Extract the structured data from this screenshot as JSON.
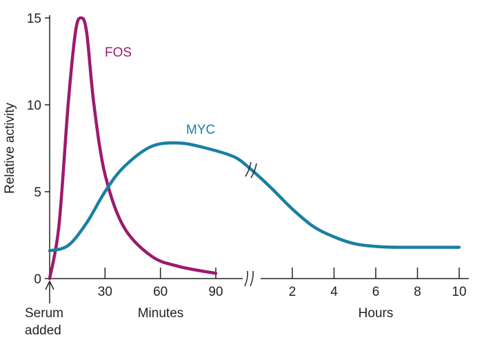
{
  "chart_data": {
    "type": "line",
    "title": "",
    "ylabel": "Relative activity",
    "ylim": [
      0,
      15
    ],
    "yticks": [
      0,
      5,
      10,
      15
    ],
    "x_segments": [
      {
        "label": "Minutes",
        "unit": "minutes",
        "range": [
          0,
          90
        ],
        "ticks": [
          30,
          60,
          90
        ]
      },
      {
        "label": "Hours",
        "unit": "hours",
        "range": [
          0,
          10
        ],
        "ticks": [
          2,
          4,
          6,
          8,
          10
        ]
      }
    ],
    "annotation": {
      "text_line1": "Serum",
      "text_line2": "added",
      "x_minutes": 0
    },
    "series": [
      {
        "name": "FOS",
        "color": "#9c1a6e",
        "points": [
          {
            "segment": 0,
            "x": 0,
            "y": 0
          },
          {
            "segment": 0,
            "x": 5,
            "y": 3
          },
          {
            "segment": 0,
            "x": 10,
            "y": 10
          },
          {
            "segment": 0,
            "x": 14,
            "y": 14.2
          },
          {
            "segment": 0,
            "x": 17,
            "y": 15
          },
          {
            "segment": 0,
            "x": 20,
            "y": 14.2
          },
          {
            "segment": 0,
            "x": 24,
            "y": 10
          },
          {
            "segment": 0,
            "x": 30,
            "y": 6
          },
          {
            "segment": 0,
            "x": 40,
            "y": 3
          },
          {
            "segment": 0,
            "x": 55,
            "y": 1.3
          },
          {
            "segment": 0,
            "x": 70,
            "y": 0.7
          },
          {
            "segment": 0,
            "x": 90,
            "y": 0.3
          }
        ]
      },
      {
        "name": "MYC",
        "color": "#1a7fa3",
        "points": [
          {
            "segment": 0,
            "x": 0,
            "y": 1.6
          },
          {
            "segment": 0,
            "x": 10,
            "y": 1.9
          },
          {
            "segment": 0,
            "x": 20,
            "y": 3.2
          },
          {
            "segment": 0,
            "x": 30,
            "y": 5
          },
          {
            "segment": 0,
            "x": 40,
            "y": 6.4
          },
          {
            "segment": 0,
            "x": 55,
            "y": 7.6
          },
          {
            "segment": 0,
            "x": 70,
            "y": 7.8
          },
          {
            "segment": 0,
            "x": 85,
            "y": 7.5
          },
          {
            "segment": 0,
            "x": 100,
            "y": 7
          },
          {
            "segment": 1,
            "x": 0,
            "y": 6.3
          },
          {
            "segment": 1,
            "x": 1,
            "y": 5.2
          },
          {
            "segment": 1,
            "x": 2,
            "y": 4
          },
          {
            "segment": 1,
            "x": 3,
            "y": 3
          },
          {
            "segment": 1,
            "x": 4,
            "y": 2.4
          },
          {
            "segment": 1,
            "x": 5,
            "y": 2
          },
          {
            "segment": 1,
            "x": 6,
            "y": 1.85
          },
          {
            "segment": 1,
            "x": 7,
            "y": 1.8
          },
          {
            "segment": 1,
            "x": 10,
            "y": 1.8
          }
        ]
      }
    ]
  }
}
